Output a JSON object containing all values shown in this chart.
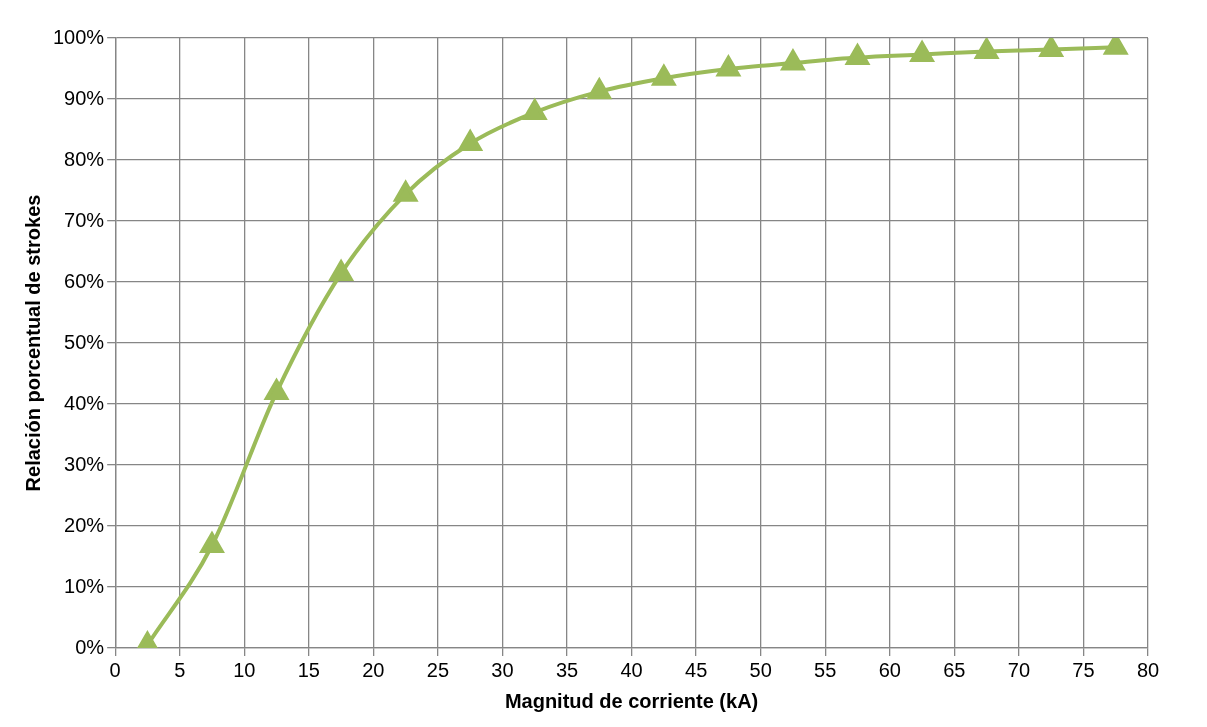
{
  "chart_data": {
    "type": "line",
    "xlabel": "Magnitud de corriente (kA)",
    "ylabel": "Relación porcentual de strokes",
    "x": [
      2.5,
      7.5,
      12.5,
      17.5,
      22.5,
      27.5,
      32.5,
      37.5,
      42.5,
      47.5,
      52.5,
      57.5,
      62.5,
      67.5,
      72.5,
      77.5
    ],
    "series": [
      {
        "color": "#9bbb59",
        "values": [
          0.5,
          16.8,
          41.9,
          61.4,
          74.4,
          82.7,
          87.8,
          91.2,
          93.4,
          94.9,
          95.9,
          96.8,
          97.3,
          97.8,
          98.1,
          98.5
        ]
      }
    ],
    "xlim": [
      0,
      80
    ],
    "xticks": [
      0,
      5,
      10,
      15,
      20,
      25,
      30,
      35,
      40,
      45,
      50,
      55,
      60,
      65,
      70,
      75,
      80
    ],
    "ylim": [
      0,
      100
    ],
    "yticks": [
      {
        "value": 0,
        "label": "0%"
      },
      {
        "value": 10,
        "label": "10%"
      },
      {
        "value": 20,
        "label": "20%"
      },
      {
        "value": 30,
        "label": "30%"
      },
      {
        "value": 40,
        "label": "40%"
      },
      {
        "value": 50,
        "label": "50%"
      },
      {
        "value": 60,
        "label": "60%"
      },
      {
        "value": 70,
        "label": "70%"
      },
      {
        "value": 80,
        "label": "80%"
      },
      {
        "value": 90,
        "label": "90%"
      },
      {
        "value": 100,
        "label": "100%"
      }
    ],
    "grid": true,
    "legend": false,
    "marker": "triangle",
    "line_style": "solid"
  }
}
